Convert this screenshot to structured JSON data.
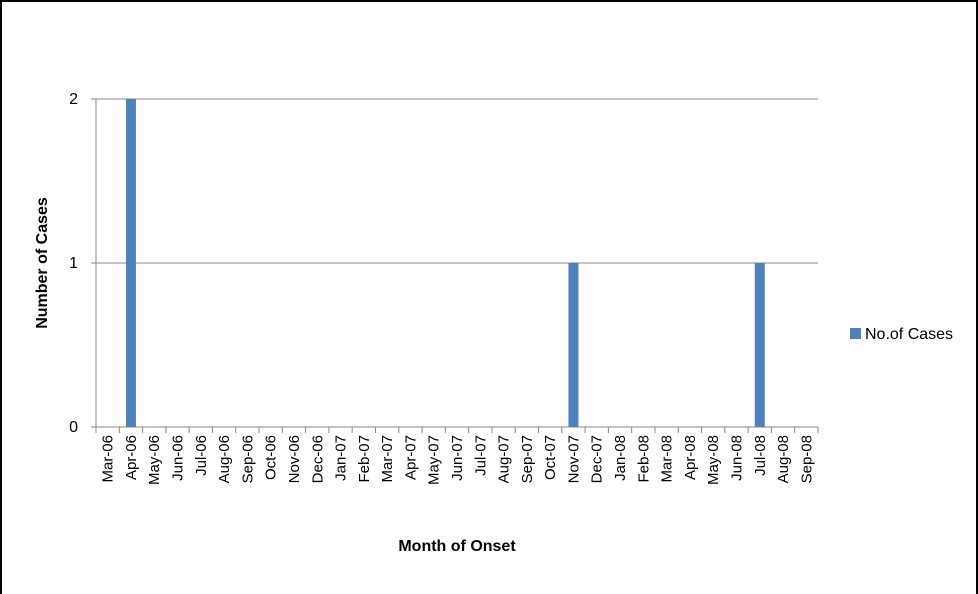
{
  "chart_data": {
    "type": "bar",
    "x_label": "Month of Onset",
    "y_label": "Number of Cases",
    "categories": [
      "Mar-06",
      "Apr-06",
      "May-06",
      "Jun-06",
      "Jul-06",
      "Aug-06",
      "Sep-06",
      "Oct-06",
      "Nov-06",
      "Dec-06",
      "Jan-07",
      "Feb-07",
      "Mar-07",
      "Apr-07",
      "May-07",
      "Jun-07",
      "Jul-07",
      "Aug-07",
      "Sep-07",
      "Oct-07",
      "Nov-07",
      "Dec-07",
      "Jan-08",
      "Feb-08",
      "Mar-08",
      "Apr-08",
      "May-08",
      "Jun-08",
      "Jul-08",
      "Aug-08",
      "Sep-08"
    ],
    "series": [
      {
        "name": "No.of Cases",
        "color": "#4f81bd",
        "values": [
          0,
          2,
          0,
          0,
          0,
          0,
          0,
          0,
          0,
          0,
          0,
          0,
          0,
          0,
          0,
          0,
          0,
          0,
          0,
          0,
          1,
          0,
          0,
          0,
          0,
          0,
          0,
          0,
          1,
          0,
          0
        ]
      }
    ],
    "ylim": [
      0,
      2
    ],
    "yticks": [
      0,
      1,
      2
    ],
    "grid": true,
    "legend": "right"
  }
}
